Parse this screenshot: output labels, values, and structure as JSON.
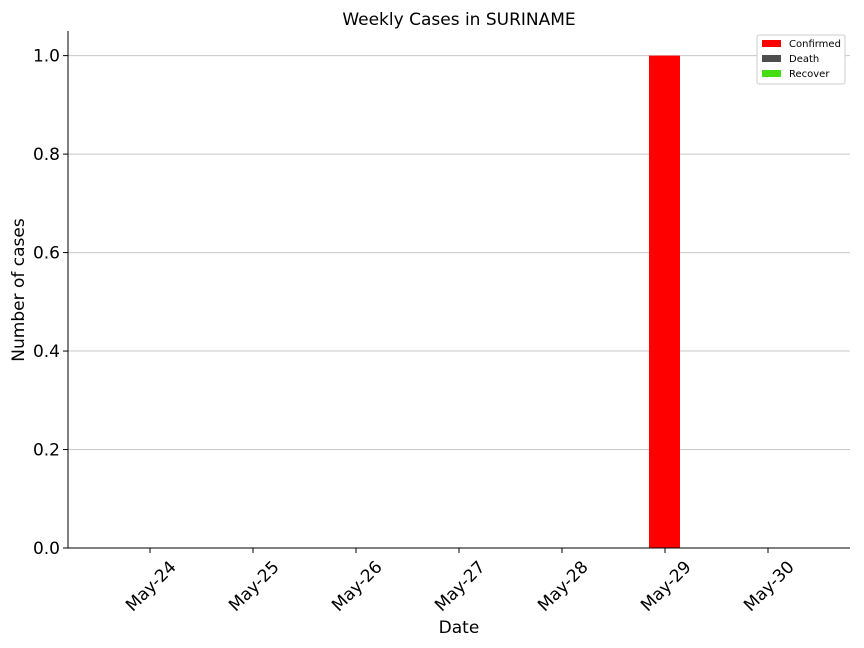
{
  "chart_data": {
    "type": "bar",
    "title": "Weekly Cases in SURINAME",
    "xlabel": "Date",
    "ylabel": "Number of cases",
    "categories": [
      "May-24",
      "May-25",
      "May-26",
      "May-27",
      "May-28",
      "May-29",
      "May-30"
    ],
    "series": [
      {
        "name": "Confirmed",
        "color": "#ff0000",
        "values": [
          0,
          0,
          0,
          0,
          0,
          1,
          0
        ]
      },
      {
        "name": "Death",
        "color": "#4d4d4d",
        "values": [
          0,
          0,
          0,
          0,
          0,
          0,
          0
        ]
      },
      {
        "name": "Recover",
        "color": "#44dd11",
        "values": [
          0,
          0,
          0,
          0,
          0,
          0,
          0
        ]
      }
    ],
    "ylim": [
      0,
      1.05
    ],
    "yticks": [
      "0.0",
      "0.2",
      "0.4",
      "0.6",
      "0.8",
      "1.0"
    ],
    "grid": "y",
    "legend_position": "top-right"
  }
}
